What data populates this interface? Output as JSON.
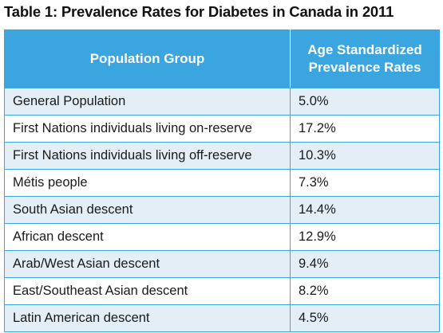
{
  "title": "Table 1: Prevalence Rates for Diabetes in Canada in 2011",
  "header": {
    "col1": "Population Group",
    "col2_line1": "Age Standardized",
    "col2_line2": "Prevalence Rates"
  },
  "rows": [
    {
      "group": "General Population",
      "rate": "5.0%"
    },
    {
      "group": "First Nations individuals living on-reserve",
      "rate": "17.2%"
    },
    {
      "group": "First Nations individuals living off-reserve",
      "rate": "10.3%"
    },
    {
      "group": "Métis people",
      "rate": "7.3%"
    },
    {
      "group": "South Asian descent",
      "rate": "14.4%"
    },
    {
      "group": "African descent",
      "rate": "12.9%"
    },
    {
      "group": "Arab/West Asian descent",
      "rate": "9.4%"
    },
    {
      "group": "East/Southeast Asian descent",
      "rate": "8.2%"
    },
    {
      "group": "Latin American descent",
      "rate": "4.5%"
    }
  ],
  "colors": {
    "header_bg": "#3aa5df",
    "alt_row_bg": "#e3eef7"
  }
}
